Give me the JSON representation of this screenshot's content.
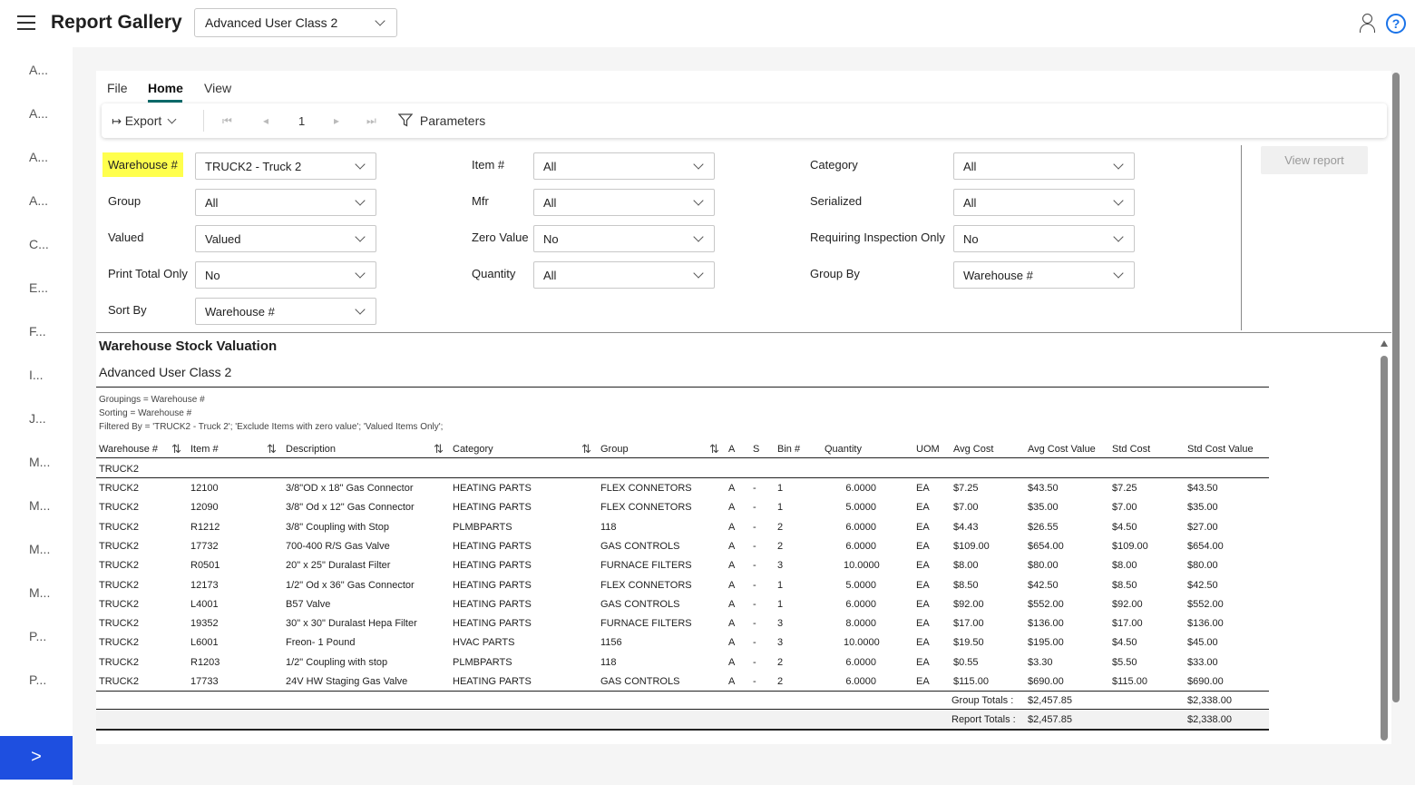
{
  "app": {
    "title": "Report Gallery",
    "class_select": "Advanced User Class 2"
  },
  "nav": {
    "items": [
      "A...",
      "A...",
      "A...",
      "A...",
      "C...",
      "E...",
      "F...",
      "I...",
      "J...",
      "M...",
      "M...",
      "M...",
      "M...",
      "P...",
      "P..."
    ],
    "toggle": ">"
  },
  "menu": {
    "tabs": [
      "File",
      "Home",
      "View"
    ],
    "active": "Home"
  },
  "toolbar": {
    "export": "Export",
    "page": "1",
    "parameters": "Parameters"
  },
  "params": {
    "warehouse_label": "Warehouse #",
    "warehouse_value": "TRUCK2 - Truck 2",
    "group_label": "Group",
    "group_value": "All",
    "valued_label": "Valued",
    "valued_value": "Valued",
    "print_total_label": "Print Total Only",
    "print_total_value": "No",
    "sort_by_label": "Sort By",
    "sort_by_value": "Warehouse #",
    "item_label": "Item #",
    "item_value": "All",
    "mfr_label": "Mfr",
    "mfr_value": "All",
    "zero_value_label": "Zero Value",
    "zero_value_value": "No",
    "quantity_label": "Quantity",
    "quantity_value": "All",
    "category_label": "Category",
    "category_value": "All",
    "serialized_label": "Serialized",
    "serialized_value": "All",
    "inspection_label": "Requiring Inspection Only",
    "inspection_value": "No",
    "group_by_label": "Group By",
    "group_by_value": "Warehouse #",
    "view_report": "View report"
  },
  "report": {
    "title": "Warehouse Stock Valuation",
    "subtitle": "Advanced User Class 2",
    "meta": [
      "Groupings = Warehouse #",
      "Sorting = Warehouse #",
      "Filtered By = 'TRUCK2 - Truck 2'; 'Exclude Items with zero value'; 'Valued Items Only';"
    ],
    "columns": {
      "warehouse": "Warehouse #",
      "item": "Item #",
      "description": "Description",
      "category": "Category",
      "group": "Group",
      "a": "A",
      "s": "S",
      "bin": "Bin #",
      "quantity": "Quantity",
      "uom": "UOM",
      "avg_cost": "Avg Cost",
      "avg_cost_value": "Avg Cost Value",
      "std_cost": "Std Cost",
      "std_cost_value": "Std Cost Value"
    },
    "group_header": "TRUCK2",
    "rows": [
      [
        "TRUCK2",
        "12100",
        "3/8\"OD x 18\" Gas Connector",
        "HEATING PARTS",
        "FLEX CONNETORS",
        "A",
        "-",
        "1",
        "6.0000",
        "EA",
        "$7.25",
        "$43.50",
        "$7.25",
        "$43.50"
      ],
      [
        "TRUCK2",
        "12090",
        "3/8\" Od x 12\" Gas Connector",
        "HEATING PARTS",
        "FLEX CONNETORS",
        "A",
        "-",
        "1",
        "5.0000",
        "EA",
        "$7.00",
        "$35.00",
        "$7.00",
        "$35.00"
      ],
      [
        "TRUCK2",
        "R1212",
        "3/8\" Coupling with Stop",
        "PLMBPARTS",
        "118",
        "A",
        "-",
        "2",
        "6.0000",
        "EA",
        "$4.43",
        "$26.55",
        "$4.50",
        "$27.00"
      ],
      [
        "TRUCK2",
        "17732",
        "700-400 R/S Gas Valve",
        "HEATING PARTS",
        "GAS CONTROLS",
        "A",
        "-",
        "2",
        "6.0000",
        "EA",
        "$109.00",
        "$654.00",
        "$109.00",
        "$654.00"
      ],
      [
        "TRUCK2",
        "R0501",
        "20\" x 25\" Duralast Filter",
        "HEATING PARTS",
        "FURNACE FILTERS",
        "A",
        "-",
        "3",
        "10.0000",
        "EA",
        "$8.00",
        "$80.00",
        "$8.00",
        "$80.00"
      ],
      [
        "TRUCK2",
        "12173",
        "1/2\" Od x 36\" Gas Connector",
        "HEATING PARTS",
        "FLEX CONNETORS",
        "A",
        "-",
        "1",
        "5.0000",
        "EA",
        "$8.50",
        "$42.50",
        "$8.50",
        "$42.50"
      ],
      [
        "TRUCK2",
        "L4001",
        "B57 Valve",
        "HEATING PARTS",
        "GAS CONTROLS",
        "A",
        "-",
        "1",
        "6.0000",
        "EA",
        "$92.00",
        "$552.00",
        "$92.00",
        "$552.00"
      ],
      [
        "TRUCK2",
        "19352",
        "30\" x 30\" Duralast Hepa Filter",
        "HEATING PARTS",
        "FURNACE FILTERS",
        "A",
        "-",
        "3",
        "8.0000",
        "EA",
        "$17.00",
        "$136.00",
        "$17.00",
        "$136.00"
      ],
      [
        "TRUCK2",
        "L6001",
        "Freon- 1 Pound",
        "HVAC PARTS",
        "1156",
        "A",
        "-",
        "3",
        "10.0000",
        "EA",
        "$19.50",
        "$195.00",
        "$4.50",
        "$45.00"
      ],
      [
        "TRUCK2",
        "R1203",
        "1/2\" Coupling with stop",
        "PLMBPARTS",
        "118",
        "A",
        "-",
        "2",
        "6.0000",
        "EA",
        "$0.55",
        "$3.30",
        "$5.50",
        "$33.00"
      ],
      [
        "TRUCK2",
        "17733",
        "24V HW Staging Gas Valve",
        "HEATING PARTS",
        "GAS CONTROLS",
        "A",
        "-",
        "2",
        "6.0000",
        "EA",
        "$115.00",
        "$690.00",
        "$115.00",
        "$690.00"
      ]
    ],
    "group_totals_label": "Group Totals :",
    "group_totals_avg": "$2,457.85",
    "group_totals_std": "$2,338.00",
    "report_totals_label": "Report Totals :",
    "report_totals_avg": "$2,457.85",
    "report_totals_std": "$2,338.00"
  }
}
